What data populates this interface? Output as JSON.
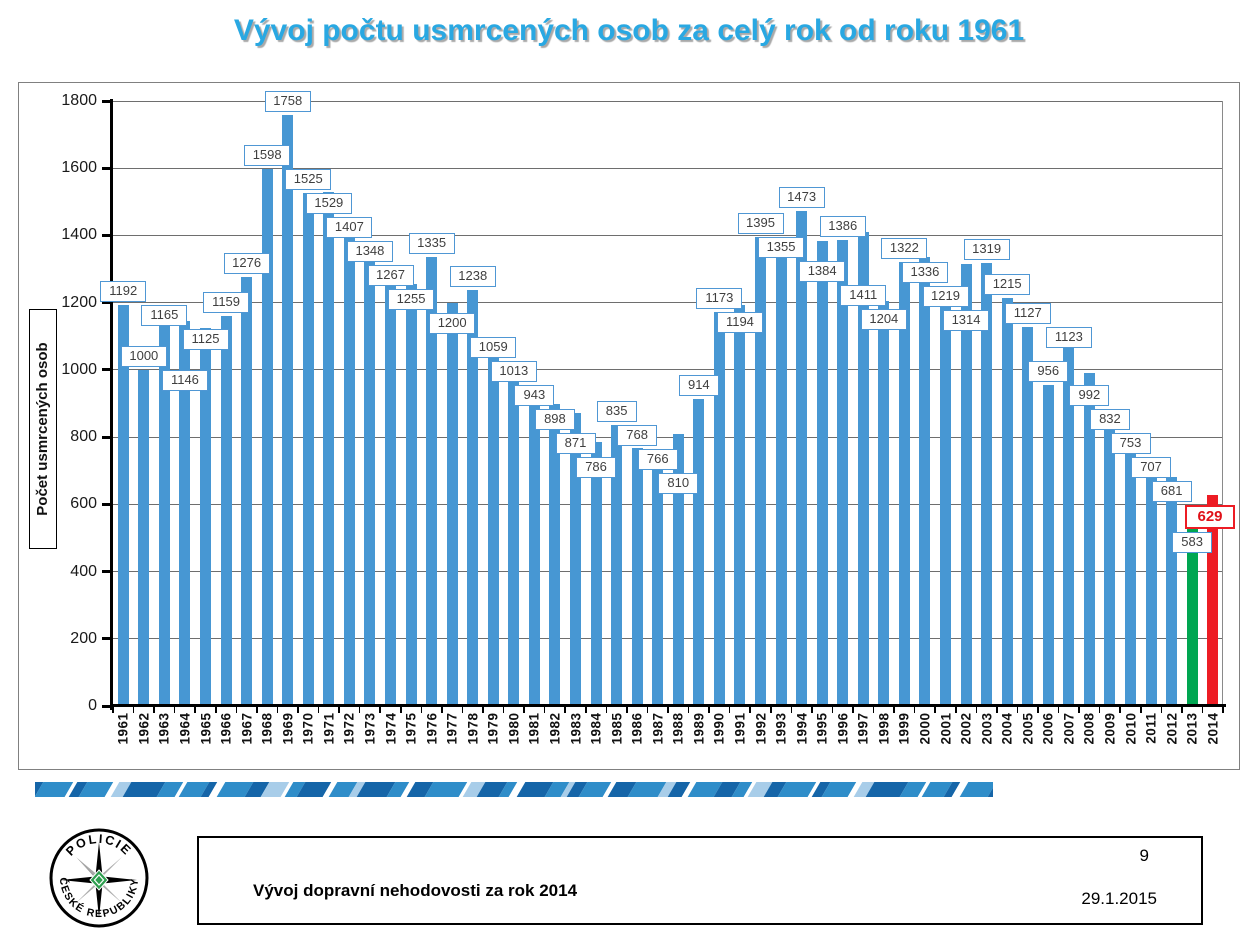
{
  "title": "Vývoj počtu usmrcených osob za celý rok od roku 1961",
  "colors": {
    "title_text": "#29a8e2",
    "bar_default": "#4797d3",
    "bar_2013": "#00a651",
    "bar_2014": "#ed1c24",
    "label_box_border": "#4f97d4",
    "label_box_border_2014": "#ed1c24",
    "gridline": "#6e6e6e",
    "stripe_palette": [
      "#1565a8",
      "#2f8dc9",
      "#a8cde9",
      "#ffffff"
    ],
    "logo_green": "#2e9e4f",
    "logo_gray": "#9b9b9b"
  },
  "chart_data": {
    "type": "bar",
    "title": "Vývoj počtu usmrcených osob za celý rok od roku 1961",
    "xlabel": "",
    "ylabel": "Počet usmrcených osob",
    "ylim": [
      0,
      1800
    ],
    "ytick_step": 200,
    "grid": true,
    "legend": false,
    "categories": [
      "1961",
      "1962",
      "1963",
      "1964",
      "1965",
      "1966",
      "1967",
      "1968",
      "1969",
      "1970",
      "1971",
      "1972",
      "1973",
      "1974",
      "1975",
      "1976",
      "1977",
      "1978",
      "1979",
      "1980",
      "1981",
      "1982",
      "1983",
      "1984",
      "1985",
      "1986",
      "1987",
      "1988",
      "1989",
      "1990",
      "1991",
      "1992",
      "1993",
      "1994",
      "1995",
      "1996",
      "1997",
      "1998",
      "1999",
      "2000",
      "2001",
      "2002",
      "2003",
      "2004",
      "2005",
      "2006",
      "2007",
      "2008",
      "2009",
      "2010",
      "2011",
      "2012",
      "2013",
      "2014"
    ],
    "values": [
      1192,
      1000,
      1165,
      1146,
      1125,
      1159,
      1276,
      1598,
      1758,
      1525,
      1529,
      1407,
      1348,
      1267,
      1255,
      1335,
      1200,
      1238,
      1059,
      1013,
      943,
      898,
      871,
      786,
      835,
      768,
      766,
      810,
      914,
      1173,
      1194,
      1395,
      1355,
      1473,
      1384,
      1386,
      1411,
      1204,
      1322,
      1336,
      1219,
      1314,
      1319,
      1215,
      1127,
      956,
      1123,
      992,
      832,
      753,
      707,
      681,
      583,
      629
    ],
    "highlighted_bars": {
      "2013": "green",
      "2014": "red"
    }
  },
  "footer": {
    "title": "Vývoj dopravní nehodovosti za rok 2014",
    "page": "9",
    "date": "29.1.2015"
  },
  "logo": {
    "top_text": "POLICIE",
    "bottom_text": "ČESKÉ REPUBLIKY"
  }
}
